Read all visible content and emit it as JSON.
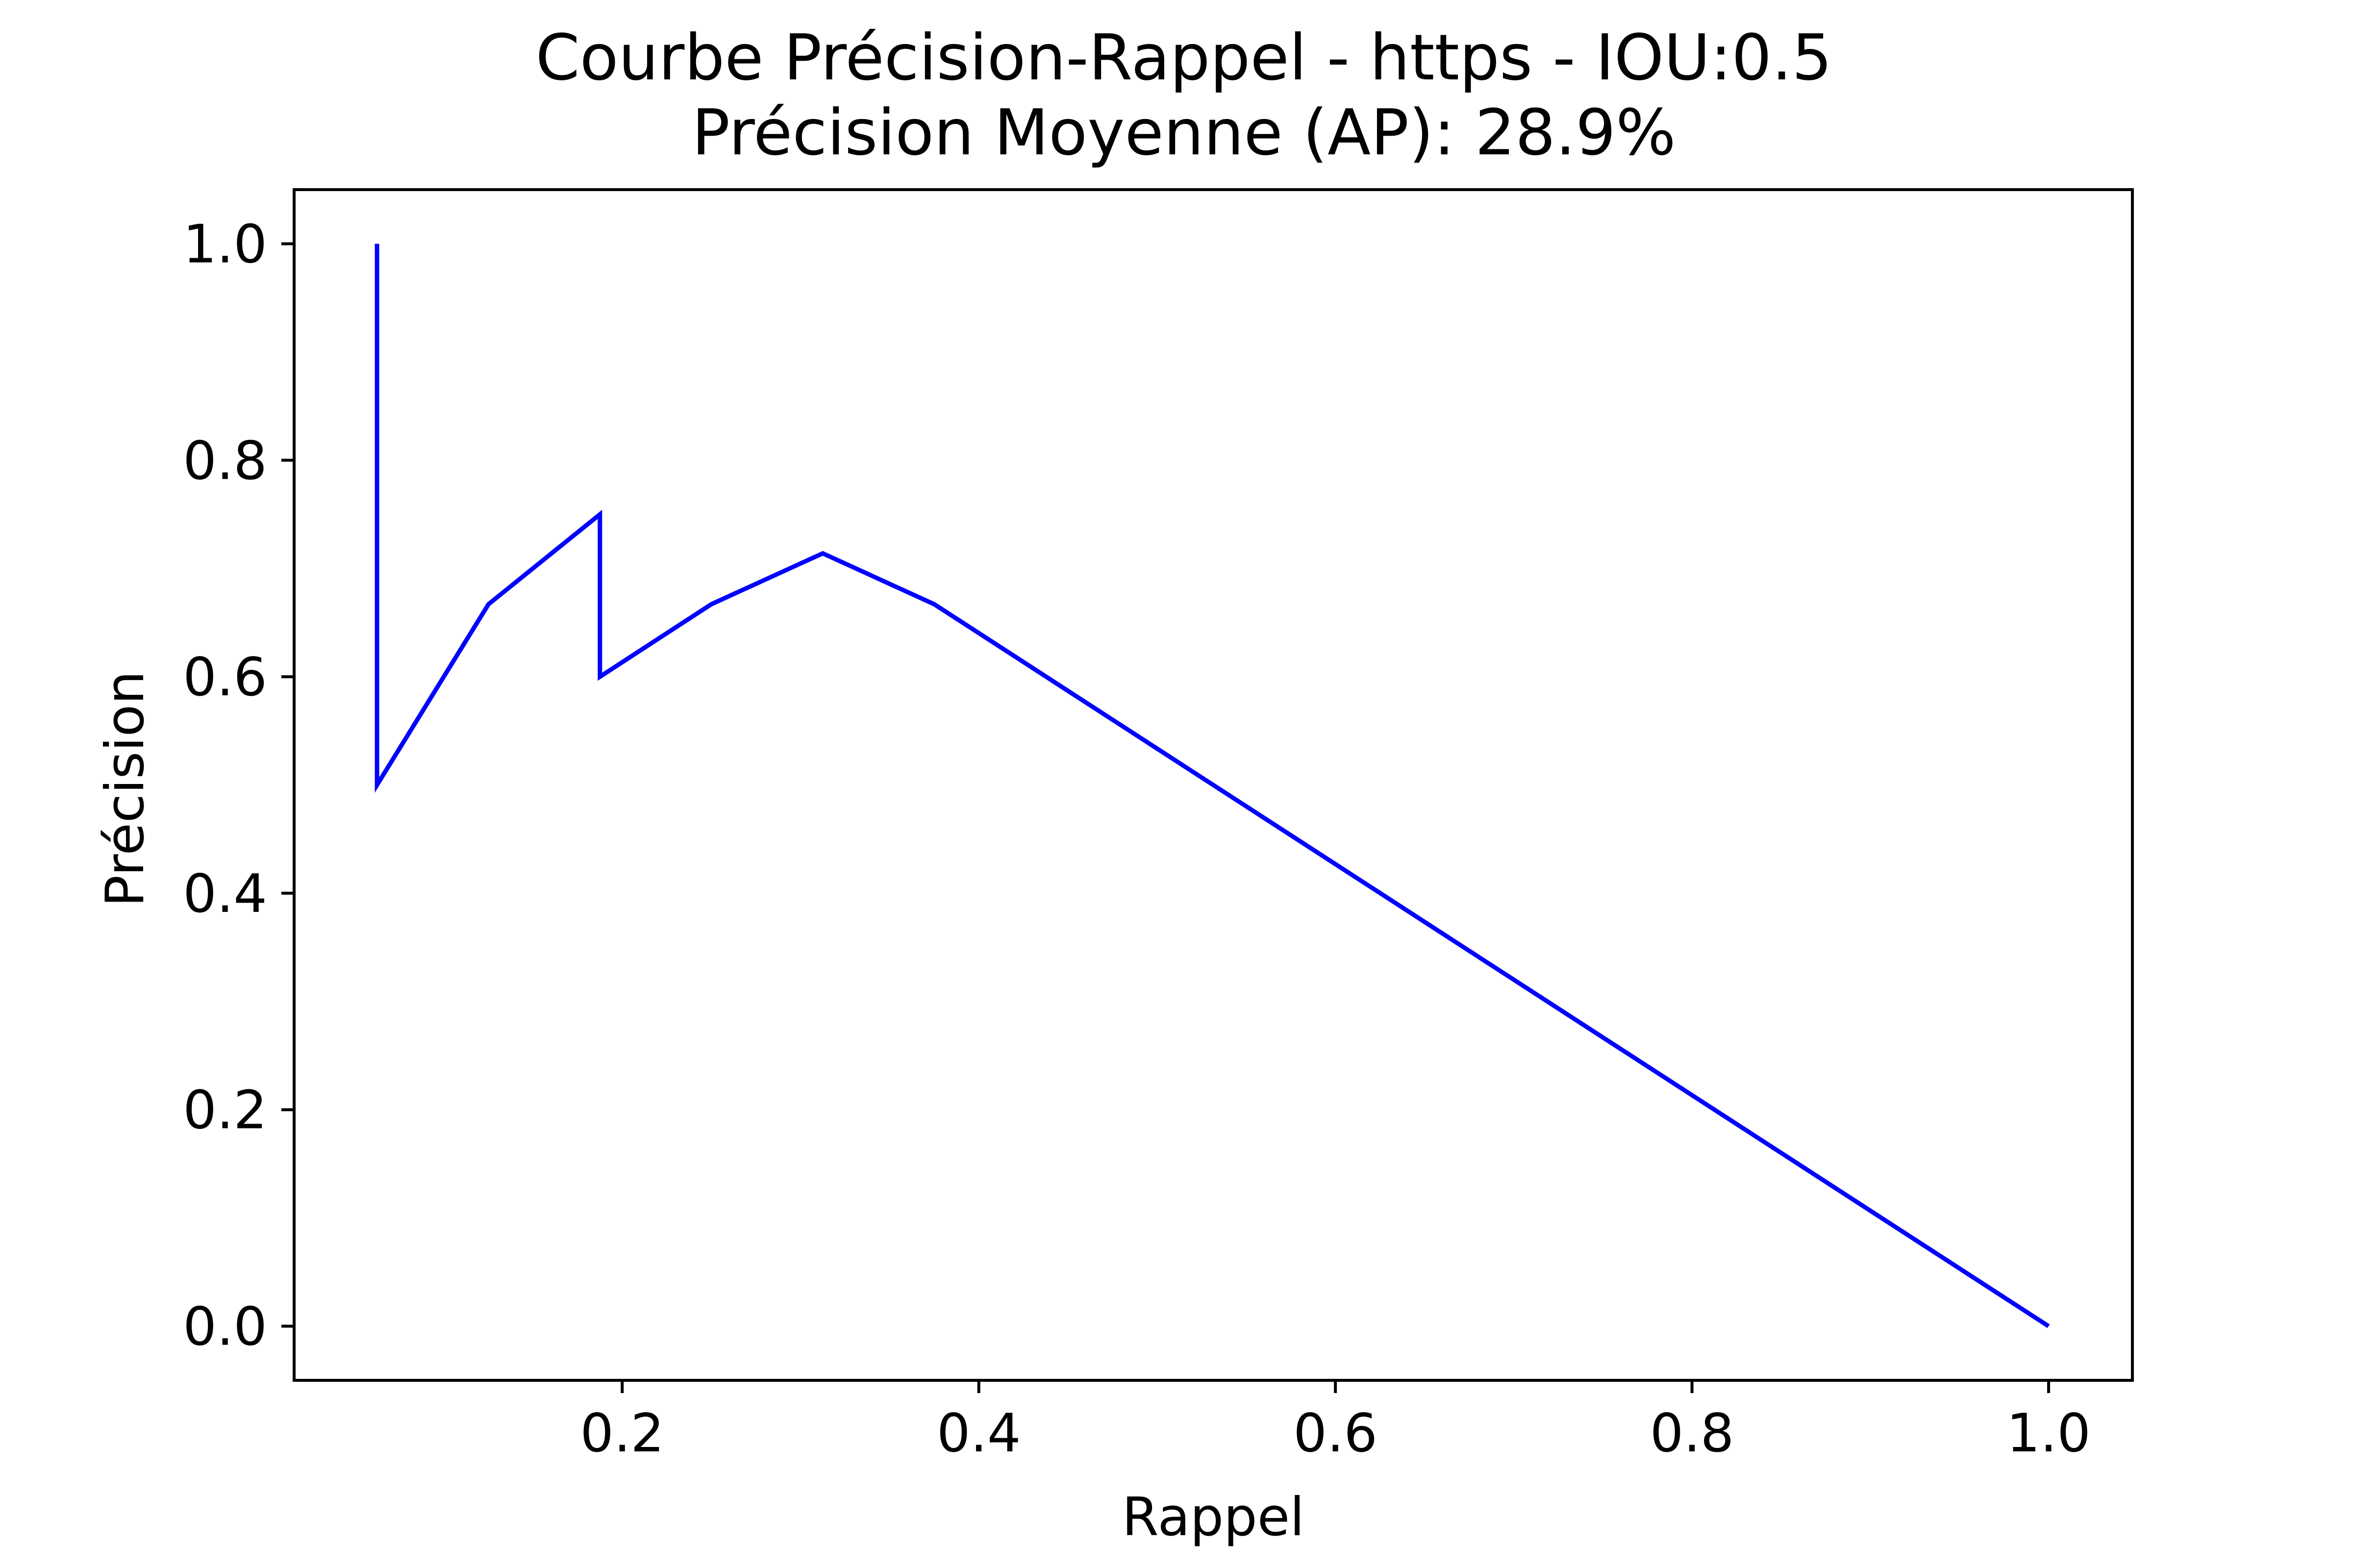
{
  "chart_data": {
    "type": "line",
    "title": "Courbe Précision-Rappel - https - IOU:0.5",
    "subtitle": "Précision Moyenne (AP): 28.9%",
    "xlabel": "Rappel",
    "ylabel": "Précision",
    "xlim": [
      0.016,
      1.047
    ],
    "ylim": [
      -0.05,
      1.05
    ],
    "xticks": [
      0.2,
      0.4,
      0.6,
      0.8,
      1.0
    ],
    "xtick_labels": [
      "0.2",
      "0.4",
      "0.6",
      "0.8",
      "1.0"
    ],
    "yticks": [
      0.0,
      0.2,
      0.4,
      0.6,
      0.8,
      1.0
    ],
    "ytick_labels": [
      "0.0",
      "0.2",
      "0.4",
      "0.6",
      "0.8",
      "1.0"
    ],
    "grid": false,
    "series": [
      {
        "color": "#0000ff",
        "x": [
          0.0625,
          0.0625,
          0.125,
          0.1875,
          0.1875,
          0.25,
          0.3125,
          0.375,
          1.0
        ],
        "y": [
          1.0,
          0.5,
          0.667,
          0.75,
          0.6,
          0.667,
          0.714,
          0.667,
          0.0
        ]
      }
    ]
  }
}
